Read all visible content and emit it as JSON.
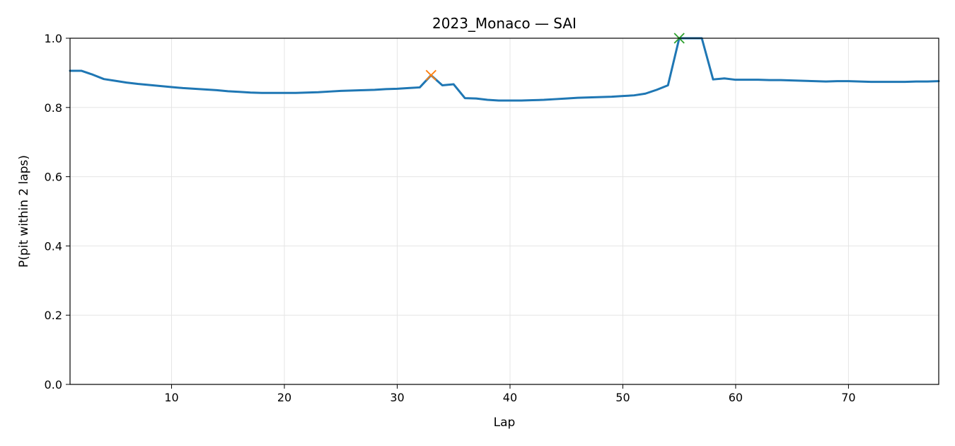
{
  "chart_data": {
    "type": "line",
    "title": "2023_Monaco — SAI",
    "xlabel": "Lap",
    "ylabel": "P(pit within 2 laps)",
    "xlim": [
      1,
      78
    ],
    "ylim": [
      0.0,
      1.0
    ],
    "xticks": [
      10,
      20,
      30,
      40,
      50,
      60,
      70
    ],
    "xtick_labels": [
      "10",
      "20",
      "30",
      "40",
      "50",
      "60",
      "70"
    ],
    "yticks": [
      0.0,
      0.2,
      0.4,
      0.6,
      0.8,
      1.0
    ],
    "ytick_labels": [
      "0.0",
      "0.2",
      "0.4",
      "0.6",
      "0.8",
      "1.0"
    ],
    "grid": true,
    "series": [
      {
        "color": "#1f77b4",
        "x": [
          1,
          2,
          3,
          4,
          5,
          6,
          7,
          8,
          9,
          10,
          11,
          12,
          13,
          14,
          15,
          16,
          17,
          18,
          19,
          20,
          21,
          22,
          23,
          24,
          25,
          26,
          27,
          28,
          29,
          30,
          31,
          32,
          33,
          34,
          35,
          36,
          37,
          38,
          39,
          40,
          41,
          42,
          43,
          44,
          45,
          46,
          47,
          48,
          49,
          50,
          51,
          52,
          53,
          54,
          55,
          56,
          57,
          58,
          59,
          60,
          61,
          62,
          63,
          64,
          65,
          66,
          67,
          68,
          69,
          70,
          71,
          72,
          73,
          74,
          75,
          76,
          77,
          78
        ],
        "y": [
          0.906,
          0.906,
          0.895,
          0.882,
          0.877,
          0.872,
          0.868,
          0.865,
          0.862,
          0.859,
          0.856,
          0.854,
          0.852,
          0.85,
          0.847,
          0.845,
          0.843,
          0.842,
          0.842,
          0.842,
          0.842,
          0.843,
          0.844,
          0.846,
          0.848,
          0.849,
          0.85,
          0.851,
          0.853,
          0.854,
          0.856,
          0.858,
          0.893,
          0.864,
          0.867,
          0.827,
          0.826,
          0.822,
          0.82,
          0.82,
          0.82,
          0.821,
          0.822,
          0.824,
          0.826,
          0.828,
          0.829,
          0.83,
          0.831,
          0.833,
          0.835,
          0.84,
          0.851,
          0.864,
          1.0,
          1.0,
          1.0,
          0.881,
          0.884,
          0.88,
          0.88,
          0.88,
          0.879,
          0.879,
          0.878,
          0.877,
          0.876,
          0.875,
          0.876,
          0.876,
          0.875,
          0.874,
          0.874,
          0.874,
          0.874,
          0.875,
          0.875,
          0.876
        ]
      }
    ],
    "markers": [
      {
        "x": 33,
        "y": 0.893,
        "symbol": "x",
        "color": "#ff7f0e"
      },
      {
        "x": 55,
        "y": 1.0,
        "symbol": "x",
        "color": "#2ca02c"
      }
    ]
  }
}
